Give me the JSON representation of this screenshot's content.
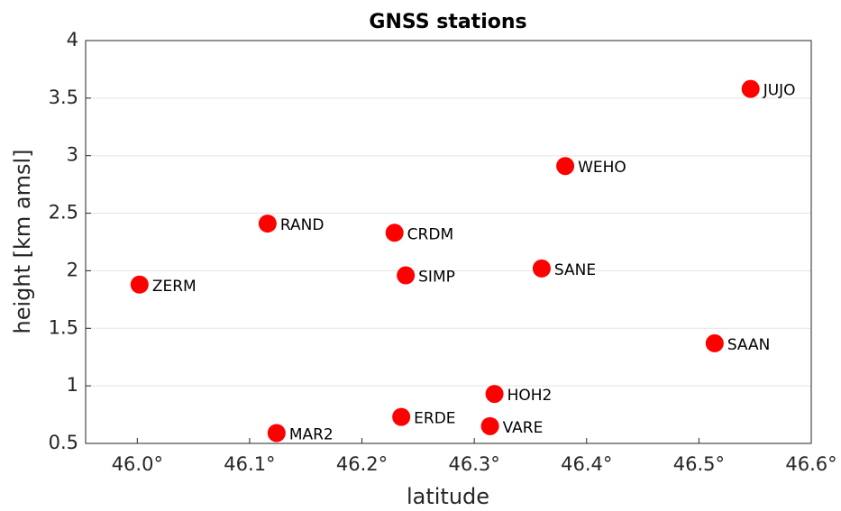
{
  "chart_data": {
    "type": "scatter",
    "title": "GNSS stations",
    "xlabel": "latitude",
    "ylabel": "height [km amsl]",
    "x": [
      46.002,
      46.116,
      46.124,
      46.229,
      46.239,
      46.235,
      46.314,
      46.318,
      46.36,
      46.381,
      46.514,
      46.546
    ],
    "values": [
      1.88,
      2.41,
      0.59,
      2.33,
      1.96,
      0.73,
      0.65,
      0.93,
      2.02,
      2.91,
      1.37,
      3.58
    ],
    "labels": [
      "ZERM",
      "RAND",
      "MAR2",
      "CRDM",
      "SIMP",
      "ERDE",
      "VARE",
      "HOH2",
      "SANE",
      "WEHO",
      "SAAN",
      "JUJO"
    ],
    "color": "#ff0000",
    "xlim": [
      45.954,
      46.6
    ],
    "xticks": [
      {
        "value": 46.0,
        "label": "46.0°"
      },
      {
        "value": 46.1,
        "label": "46.1°"
      },
      {
        "value": 46.2,
        "label": "46.2°"
      },
      {
        "value": 46.3,
        "label": "46.3°"
      },
      {
        "value": 46.4,
        "label": "46.4°"
      },
      {
        "value": 46.5,
        "label": "46.5°"
      },
      {
        "value": 46.6,
        "label": "46.6°"
      }
    ],
    "ylim": [
      0.5,
      4
    ],
    "yticks": [
      0.5,
      1,
      1.5,
      2,
      2.5,
      3,
      3.5,
      4
    ],
    "grid": true
  }
}
